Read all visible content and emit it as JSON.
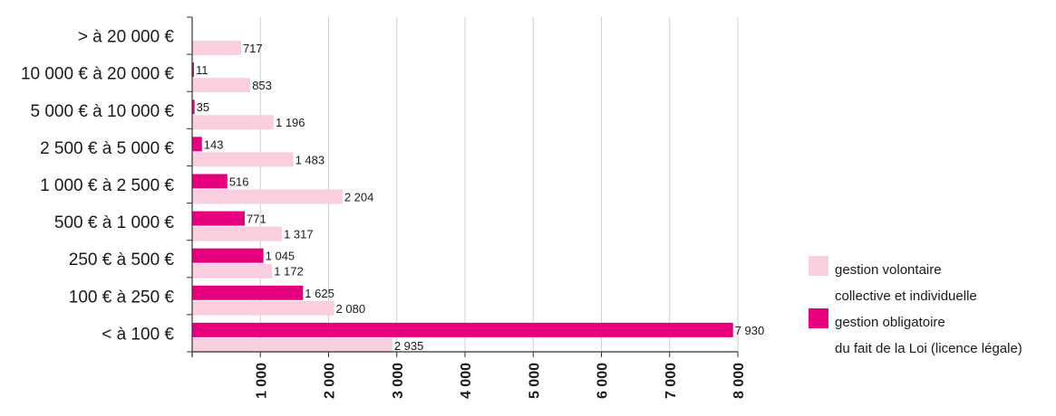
{
  "chart_data": {
    "type": "bar",
    "orientation": "horizontal",
    "categories": [
      "> à 20 000 €",
      "10 000 € à 20 000 €",
      "5 000 € à 10 000 €",
      "2 500 € à 5 000 €",
      "1 000 € à 2 500 €",
      "500 € à 1 000 €",
      "250 € à 500 €",
      "100 € à 250 €",
      "< à 100 €"
    ],
    "series": [
      {
        "key": "obligatoire",
        "color": "#e6007e",
        "values": [
          null,
          11,
          35,
          143,
          516,
          771,
          1045,
          1625,
          7930
        ],
        "labels": [
          "",
          "11",
          "35",
          "143",
          "516",
          "771",
          "1 045",
          "1 625",
          "7 930"
        ]
      },
      {
        "key": "volontaire",
        "color": "#f9cfdf",
        "values": [
          717,
          853,
          1196,
          1483,
          2204,
          1317,
          1172,
          2080,
          2935
        ],
        "labels": [
          "717",
          "853",
          "1 196",
          "1 483",
          "2 204",
          "1 317",
          "1 172",
          "2 080",
          "2 935"
        ]
      }
    ],
    "xlim": [
      0,
      8000
    ],
    "xticks": [
      1000,
      2000,
      3000,
      4000,
      5000,
      6000,
      7000,
      8000
    ],
    "xtick_labels": [
      "1 000",
      "2 000",
      "3 000",
      "4 000",
      "5 000",
      "6 000",
      "7 000",
      "8 000"
    ],
    "grid": true,
    "legend_position": "right",
    "legend": [
      {
        "color": "#f9cfdf",
        "line1": "gestion volontaire",
        "line2": "collective et individuelle"
      },
      {
        "color": "#e6007e",
        "line1": "gestion obligatoire",
        "line2": "du fait de la Loi (licence légale)"
      }
    ]
  }
}
